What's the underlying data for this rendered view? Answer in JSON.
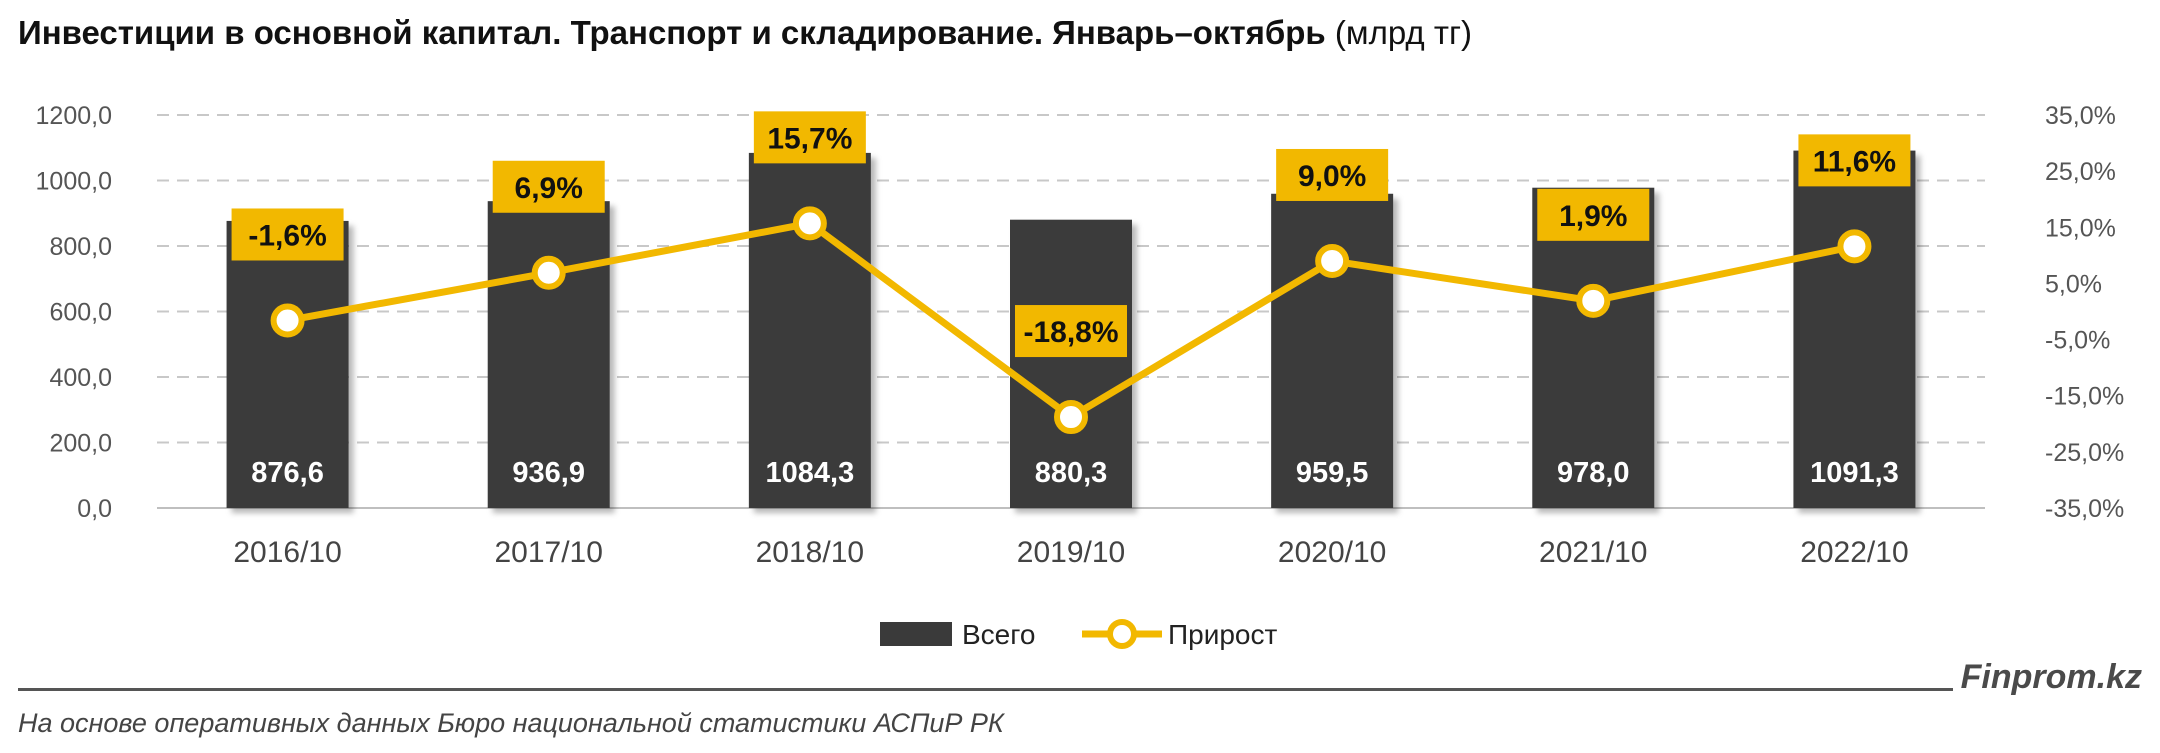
{
  "title": {
    "main": "Инвестиции в основной капитал. Транспорт и складирование. Январь–октябрь",
    "unit": "(млрд тг)"
  },
  "footer": {
    "brand": "Finprom.kz",
    "source": "На основе оперативных данных Бюро национальной статистики АСПиР РК"
  },
  "colors": {
    "bar": "#3a3a3a",
    "line": "#f2b800",
    "grid": "#c8c8c8",
    "axis_text": "#555555"
  },
  "chart_data": {
    "type": "bar",
    "categories": [
      "2016/10",
      "2017/10",
      "2018/10",
      "2019/10",
      "2020/10",
      "2021/10",
      "2022/10"
    ],
    "series": [
      {
        "name": "Всего",
        "type": "bar",
        "axis": "left",
        "values": [
          876.6,
          936.9,
          1084.3,
          880.3,
          959.5,
          978.0,
          1091.3
        ],
        "labels": [
          "876,6",
          "936,9",
          "1084,3",
          "880,3",
          "959,5",
          "978,0",
          "1091,3"
        ]
      },
      {
        "name": "Прирост",
        "type": "line",
        "axis": "right",
        "values": [
          -1.6,
          6.9,
          15.7,
          -18.8,
          9.0,
          1.9,
          11.6
        ],
        "labels": [
          "-1,6%",
          "6,9%",
          "15,7%",
          "-18,8%",
          "9,0%",
          "1,9%",
          "11,6%"
        ]
      }
    ],
    "y_left": {
      "lim": [
        0,
        1200
      ],
      "ticks": [
        0,
        200,
        400,
        600,
        800,
        1000,
        1200
      ],
      "tick_labels": [
        "0,0",
        "200,0",
        "400,0",
        "600,0",
        "800,0",
        "1000,0",
        "1200,0"
      ]
    },
    "y_right": {
      "lim": [
        -35,
        35
      ],
      "ticks": [
        -35,
        -25,
        -15,
        -5,
        5,
        15,
        25,
        35
      ],
      "tick_labels": [
        "-35,0%",
        "-25,0%",
        "-15,0%",
        "-5,0%",
        "5,0%",
        "15,0%",
        "25,0%",
        "35,0%"
      ]
    },
    "grid": true,
    "legend": "bottom-center"
  }
}
